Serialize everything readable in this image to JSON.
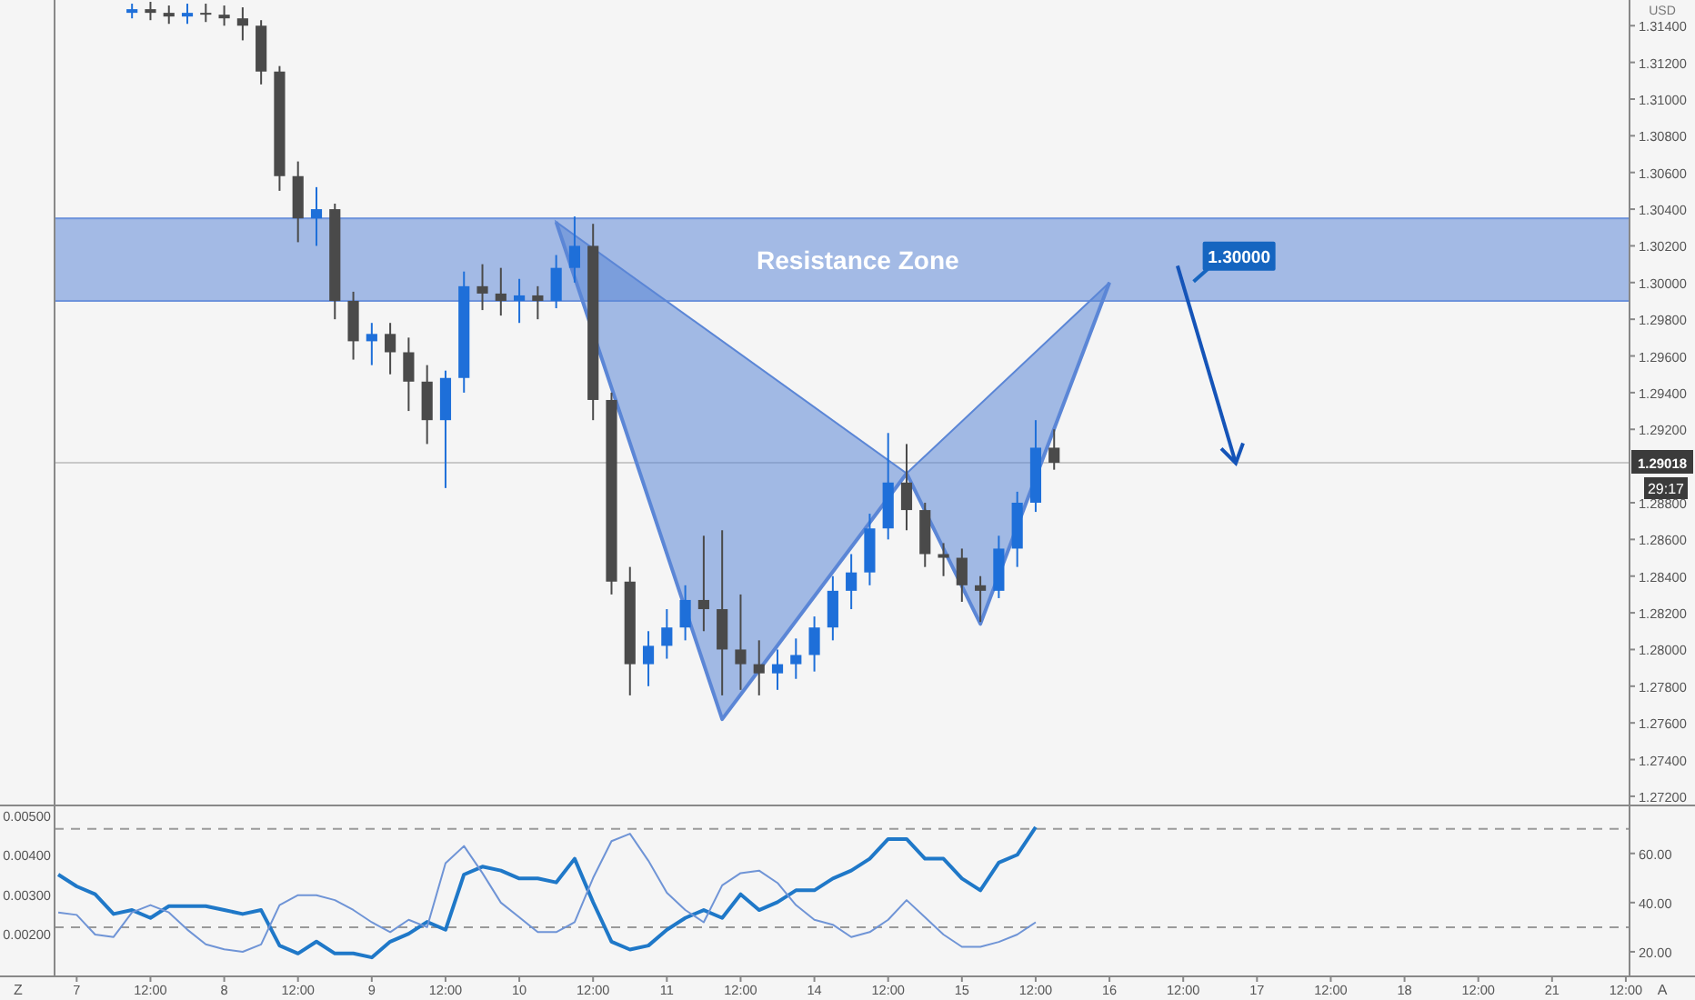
{
  "chart_data": [
    {
      "type": "candlestick",
      "tick_labels": "y",
      "ylabel": "USD",
      "ylim": [
        1.2715,
        1.3154
      ],
      "yticks": [
        {
          "value": 1.272,
          "label": "1.27200"
        },
        {
          "value": 1.274,
          "label": "1.27400"
        },
        {
          "value": 1.276,
          "label": "1.27600"
        },
        {
          "value": 1.278,
          "label": "1.27800"
        },
        {
          "value": 1.28,
          "label": "1.28000"
        },
        {
          "value": 1.282,
          "label": "1.28200"
        },
        {
          "value": 1.284,
          "label": "1.28400"
        },
        {
          "value": 1.286,
          "label": "1.28600"
        },
        {
          "value": 1.288,
          "label": "1.28800"
        },
        {
          "value": 1.292,
          "label": "1.29200"
        },
        {
          "value": 1.294,
          "label": "1.29400"
        },
        {
          "value": 1.296,
          "label": "1.29600"
        },
        {
          "value": 1.298,
          "label": "1.29800"
        },
        {
          "value": 1.3,
          "label": "1.30000"
        },
        {
          "value": 1.302,
          "label": "1.30200"
        },
        {
          "value": 1.304,
          "label": "1.30400"
        },
        {
          "value": 1.306,
          "label": "1.30600"
        },
        {
          "value": 1.308,
          "label": "1.30800"
        },
        {
          "value": 1.31,
          "label": "1.31000"
        },
        {
          "value": 1.312,
          "label": "1.31200"
        },
        {
          "value": 1.314,
          "label": "1.31400"
        }
      ],
      "categories": [
        null,
        null,
        null,
        null,
        null,
        null,
        null,
        null,
        null,
        null,
        null,
        null,
        null,
        null,
        null,
        null,
        null,
        null,
        null,
        null,
        null,
        null,
        null,
        null,
        null,
        null,
        null,
        null,
        null,
        null,
        null,
        null,
        null,
        null,
        null,
        null,
        null,
        null,
        null,
        null,
        null,
        null,
        null,
        null,
        null,
        null,
        null,
        null,
        null,
        null,
        null,
        null,
        null,
        null,
        null,
        null,
        null,
        null,
        null,
        null,
        null,
        null,
        null,
        null,
        null,
        null,
        null,
        null,
        null,
        null,
        null,
        null,
        null,
        null,
        null,
        null,
        null,
        null,
        null,
        null,
        null,
        null,
        null,
        null,
        null,
        null
      ],
      "ohlc": [
        null,
        null,
        null,
        null,
        [
          1.3147,
          1.3152,
          1.3144,
          1.3149
        ],
        [
          1.3149,
          1.3153,
          1.3143,
          1.3147
        ],
        [
          1.3147,
          1.3151,
          1.3141,
          1.3145
        ],
        [
          1.3145,
          1.3152,
          1.3141,
          1.3147
        ],
        [
          1.3147,
          1.3152,
          1.3142,
          1.3146
        ],
        [
          1.3146,
          1.3151,
          1.314,
          1.3144
        ],
        [
          1.3144,
          1.315,
          1.3132,
          1.314
        ],
        [
          1.314,
          1.3143,
          1.3108,
          1.3115
        ],
        [
          1.3115,
          1.3118,
          1.305,
          1.3058
        ],
        [
          1.3058,
          1.3066,
          1.3022,
          1.3035
        ],
        [
          1.3035,
          1.3052,
          1.302,
          1.304
        ],
        [
          1.304,
          1.3043,
          1.298,
          1.299
        ],
        [
          1.299,
          1.2995,
          1.2958,
          1.2968
        ],
        [
          1.2968,
          1.2978,
          1.2955,
          1.2972
        ],
        [
          1.2972,
          1.2978,
          1.295,
          1.2962
        ],
        [
          1.2962,
          1.297,
          1.293,
          1.2946
        ],
        [
          1.2946,
          1.2955,
          1.2912,
          1.2925
        ],
        [
          1.2925,
          1.2952,
          1.2888,
          1.2948
        ],
        [
          1.2948,
          1.3006,
          1.294,
          1.2998
        ],
        [
          1.2998,
          1.301,
          1.2985,
          1.2994
        ],
        [
          1.2994,
          1.3008,
          1.2982,
          1.299
        ],
        [
          1.299,
          1.3002,
          1.2978,
          1.2993
        ],
        [
          1.2993,
          1.2998,
          1.298,
          1.299
        ],
        [
          1.299,
          1.3015,
          1.2986,
          1.3008
        ],
        [
          1.3008,
          1.3036,
          1.3,
          1.302
        ],
        [
          1.302,
          1.3032,
          1.2925,
          1.2936
        ],
        [
          1.2936,
          1.294,
          1.283,
          1.2837
        ],
        [
          1.2837,
          1.2845,
          1.2775,
          1.2792
        ],
        [
          1.2792,
          1.281,
          1.278,
          1.2802
        ],
        [
          1.2802,
          1.2822,
          1.2795,
          1.2812
        ],
        [
          1.2812,
          1.2835,
          1.2805,
          1.2827
        ],
        [
          1.2827,
          1.2862,
          1.281,
          1.2822
        ],
        [
          1.2822,
          1.2865,
          1.2775,
          1.28
        ],
        [
          1.28,
          1.283,
          1.2778,
          1.2792
        ],
        [
          1.2792,
          1.2805,
          1.2775,
          1.2787
        ],
        [
          1.2787,
          1.28,
          1.2778,
          1.2792
        ],
        [
          1.2792,
          1.2806,
          1.2784,
          1.2797
        ],
        [
          1.2797,
          1.2818,
          1.2788,
          1.2812
        ],
        [
          1.2812,
          1.284,
          1.2805,
          1.2832
        ],
        [
          1.2832,
          1.2852,
          1.2822,
          1.2842
        ],
        [
          1.2842,
          1.2874,
          1.2835,
          1.2866
        ],
        [
          1.2866,
          1.2918,
          1.286,
          1.2891
        ],
        [
          1.2891,
          1.2912,
          1.2865,
          1.2876
        ],
        [
          1.2876,
          1.288,
          1.2845,
          1.2852
        ],
        [
          1.2852,
          1.2858,
          1.284,
          1.285
        ],
        [
          1.285,
          1.2855,
          1.2826,
          1.2835
        ],
        [
          1.2835,
          1.284,
          1.2815,
          1.2832
        ],
        [
          1.2832,
          1.2862,
          1.2828,
          1.2855
        ],
        [
          1.2855,
          1.2886,
          1.2845,
          1.288
        ],
        [
          1.288,
          1.2925,
          1.2875,
          1.291
        ],
        [
          1.291,
          1.292,
          1.2898,
          1.29018
        ],
        null,
        null,
        null,
        null,
        null,
        null,
        null,
        null,
        null,
        null,
        null,
        null,
        null,
        null,
        null,
        null,
        null,
        null,
        null,
        null,
        null,
        null,
        null,
        null,
        null,
        null,
        null,
        null,
        null,
        null,
        null
      ],
      "colors": [
        null,
        null,
        null,
        null,
        "#1e6fd9",
        "#4a4a4a",
        "#4a4a4a",
        "#1e6fd9",
        "#4a4a4a",
        "#4a4a4a",
        "#4a4a4a",
        "#4a4a4a",
        "#4a4a4a",
        "#4a4a4a",
        "#1e6fd9",
        "#4a4a4a",
        "#4a4a4a",
        "#1e6fd9",
        "#4a4a4a",
        "#4a4a4a",
        "#4a4a4a",
        "#1e6fd9",
        "#1e6fd9",
        "#4a4a4a",
        "#4a4a4a",
        "#1e6fd9",
        "#4a4a4a",
        "#1e6fd9",
        "#1e6fd9",
        "#4a4a4a",
        "#4a4a4a",
        "#4a4a4a",
        "#1e6fd9",
        "#1e6fd9",
        "#1e6fd9",
        "#4a4a4a",
        "#4a4a4a",
        "#4a4a4a",
        "#4a4a4a",
        "#1e6fd9",
        "#1e6fd9",
        "#1e6fd9",
        "#1e6fd9",
        "#1e6fd9",
        "#1e6fd9",
        "#1e6fd9",
        "#4a4a4a",
        "#4a4a4a",
        "#4a4a4a",
        "#4a4a4a",
        "#4a4a4a",
        "#1e6fd9",
        "#1e6fd9",
        "#1e6fd9",
        "#4a4a4a",
        null,
        null,
        null,
        null,
        null,
        null,
        null,
        null,
        null,
        null,
        null,
        null,
        null,
        null,
        null,
        null,
        null,
        null,
        null,
        null,
        null,
        null,
        null,
        null,
        null,
        null,
        null,
        null,
        null,
        null,
        null
      ],
      "series": [
        {
          "type": "line",
          "color": "#5b86d6",
          "values": [
            null,
            null,
            null,
            null,
            null,
            null,
            null,
            null,
            null,
            null,
            null,
            null,
            null,
            null,
            null,
            null,
            null,
            null,
            null,
            null,
            null,
            null,
            null,
            null,
            null,
            null,
            null,
            1.3033,
            null,
            null,
            null,
            null,
            null,
            null,
            null,
            null,
            1.2762,
            null,
            null,
            null,
            null,
            null,
            null,
            null,
            null,
            null,
            1.2896,
            null,
            null,
            null,
            1.2814,
            null,
            null,
            null,
            null,
            null,
            null,
            1.3,
            null,
            null,
            null,
            null,
            null,
            null,
            null,
            null,
            null,
            null,
            null,
            null,
            null,
            null,
            null,
            null,
            null,
            null,
            null,
            null,
            null,
            null,
            null,
            null,
            null,
            null,
            null,
            null
          ]
        }
      ],
      "bands": [
        {
          "axis": "y",
          "from": 1.299,
          "to": 1.3035,
          "label": "Resistance Zone",
          "color": "#6d93db"
        }
      ],
      "ref_lines": [
        {
          "axis": "y",
          "value": 1.29018,
          "label": "1.29018",
          "color": "#c8c8c8"
        }
      ],
      "annotations": [
        "1.30000",
        "29:17"
      ]
    },
    {
      "type": "line",
      "ylim": [
        0.00092,
        0.00525
      ],
      "y2lim": [
        10,
        79.5
      ],
      "categories": [
        null,
        "7",
        null,
        null,
        null,
        "12:00",
        null,
        null,
        null,
        "8",
        null,
        null,
        null,
        "12:00",
        null,
        null,
        null,
        "9",
        null,
        null,
        null,
        "12:00",
        null,
        null,
        null,
        "10",
        null,
        null,
        null,
        "12:00",
        null,
        null,
        null,
        "11",
        null,
        null,
        null,
        "12:00",
        null,
        null,
        null,
        "14",
        null,
        null,
        null,
        "12:00",
        null,
        null,
        null,
        "15",
        null,
        null,
        null,
        "12:00",
        null,
        null,
        null,
        "16",
        null,
        null,
        null,
        "12:00",
        null,
        null,
        null,
        "17",
        null,
        null,
        null,
        "12:00",
        null,
        null,
        null,
        "18",
        null,
        null,
        null,
        "12:00",
        null,
        null,
        null,
        "21",
        null,
        null,
        null,
        "12:00"
      ],
      "yticks": [
        {
          "value": 0.002,
          "label": "0.00200"
        },
        {
          "value": 0.003,
          "label": "0.00300"
        },
        {
          "value": 0.004,
          "label": "0.00400"
        },
        {
          "value": 0.005,
          "label": "0.00500"
        }
      ],
      "y2ticks": [
        {
          "value": 20,
          "label": "20.00"
        },
        {
          "value": 40,
          "label": "40.00"
        },
        {
          "value": 60,
          "label": "60.00"
        }
      ],
      "series": [
        {
          "color": "#1f78c8",
          "values": [
            0.0035,
            0.0032,
            0.003,
            0.0025,
            0.0026,
            0.0024,
            0.0027,
            0.0027,
            0.0027,
            0.0026,
            0.0025,
            0.0026,
            0.0017,
            0.0015,
            0.0018,
            0.0015,
            0.0015,
            0.0014,
            0.0018,
            0.002,
            0.0023,
            0.0021,
            0.0035,
            0.0037,
            0.0036,
            0.0034,
            0.0034,
            0.0033,
            0.0039,
            0.0028,
            0.0018,
            0.0016,
            0.0017,
            0.0021,
            0.0024,
            0.0026,
            0.0024,
            0.003,
            0.0026,
            0.0028,
            0.0031,
            0.0031,
            0.0034,
            0.0036,
            0.0039,
            0.0044,
            0.0044,
            0.0039,
            0.0039,
            0.0034,
            0.0031,
            0.0038,
            0.004,
            0.0047,
            null,
            null,
            null,
            null,
            null,
            null,
            null,
            null,
            null,
            null,
            null,
            null,
            null,
            null,
            null,
            null,
            null,
            null,
            null,
            null,
            null,
            null,
            null,
            null,
            null,
            null,
            null,
            null,
            null,
            null,
            null,
            null
          ]
        },
        {
          "axis": "y2",
          "color": "#6f94d6",
          "values": [
            36,
            35,
            27,
            26,
            36,
            39,
            36,
            29,
            23,
            21,
            20,
            23,
            39,
            43,
            43,
            41,
            37,
            32,
            28,
            33,
            30,
            56,
            63,
            52,
            40,
            34,
            28,
            28,
            32,
            50,
            65,
            68,
            57,
            44,
            37,
            32,
            47,
            52,
            53,
            48,
            39,
            33,
            31,
            26,
            28,
            33,
            41,
            34,
            27,
            22,
            22,
            24,
            27,
            32,
            null,
            null,
            null,
            null,
            null,
            null,
            null,
            null,
            null,
            null,
            null,
            null,
            null,
            null,
            null,
            null,
            null,
            null,
            null,
            null,
            null,
            null,
            null,
            null,
            null,
            null,
            null,
            null,
            null,
            null,
            null,
            null
          ]
        }
      ],
      "ref_lines": [
        {
          "axis": "y2",
          "value": 70,
          "line_style": "dashed",
          "color": "#9a9a9a"
        },
        {
          "axis": "y2",
          "value": 30,
          "line_style": "dashed",
          "color": "#9a9a9a"
        }
      ],
      "annotations": [
        "Z",
        "A"
      ]
    }
  ]
}
